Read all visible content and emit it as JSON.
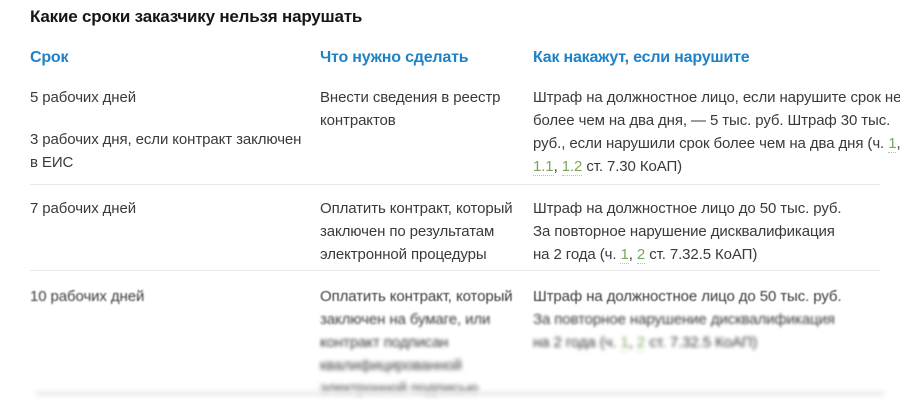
{
  "title": "Какие сроки заказчику нельзя нарушать",
  "colors": {
    "header_blue": "#1e82c8",
    "link_green": "#7aa65c",
    "body_text": "#3a3a3e",
    "separator": "#e8e8e8"
  },
  "table": {
    "headers": [
      "Срок",
      "Что нужно сделать",
      "Как накажут, если нарушите"
    ],
    "rows": [
      {
        "term": {
          "p1": "5 рабочих дней",
          "p2l1": "3 рабочих дня, если контракт заключен",
          "p2l2": "в ЕИС"
        },
        "action": {
          "l1": "Внести сведения в реестр",
          "l2": "контрактов"
        },
        "penalty": {
          "l1": "Штраф на должностное лицо, если нарушите срок не",
          "l2": "более чем на два дня, — 5 тыс. руб. Штраф 30 тыс.",
          "l3pre": "руб., если нарушили срок более чем на два дня (ч.",
          "l3link": "1",
          "l3post": ",",
          "l4link1": "1.1",
          "l4sep": ",",
          "l4link2": "1.2",
          "l4post": "ст. 7.30 КоАП)"
        }
      },
      {
        "term": {
          "p1": "7 рабочих дней"
        },
        "action": {
          "l1": "Оплатить контракт, который",
          "l2": "заключен по результатам",
          "l3": "электронной процедуры"
        },
        "penalty": {
          "l1": "Штраф на должностное лицо до 50 тыс. руб.",
          "l2": "За повторное нарушение дисквалификация",
          "l3pre": "на 2 года (ч.",
          "l3link1": "1",
          "l3sep": ",",
          "l3link2": "2",
          "l3post": "ст. 7.32.5 КоАП)"
        }
      },
      {
        "term": {
          "p1": "10 рабочих дней"
        },
        "action": {
          "l1": "Оплатить контракт, который",
          "l2": "заключен на бумаге, или",
          "l3": "контракт подписан",
          "blurred_l4": "квалифицированной",
          "blurred_l5": "электронной подписью"
        },
        "penalty": {
          "l1": "Штраф на должностное лицо до 50 тыс. руб.",
          "l2": "За повторное нарушение дисквалификация",
          "l3pre": "на 2 года (ч.",
          "l3link1": "1",
          "l3sep": ",",
          "l3link2": "2",
          "l3post": "ст. 7.32.5 КоАП)"
        }
      }
    ]
  }
}
